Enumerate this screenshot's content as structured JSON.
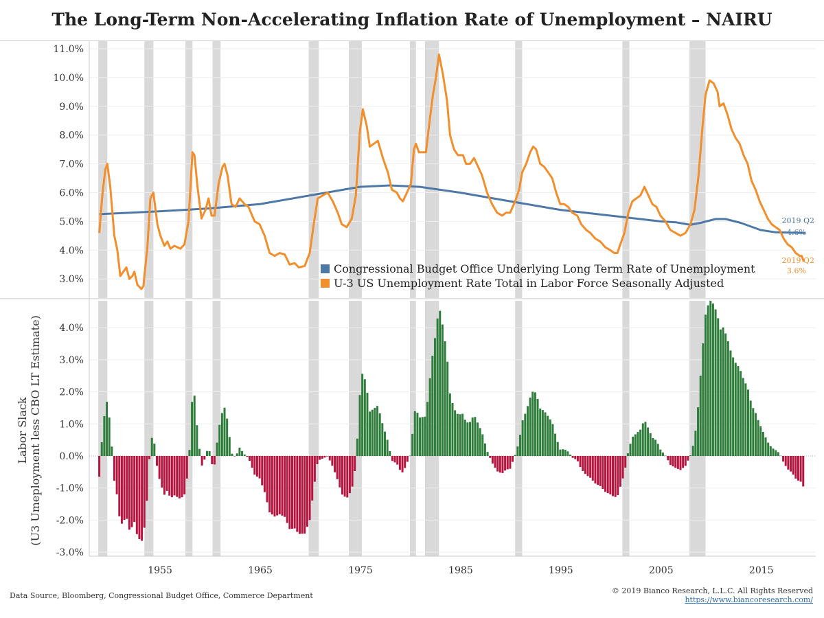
{
  "title": "The Long-Term Non-Accelerating Inflation Rate of Unemployment – NAIRU",
  "footer": {
    "source": "Data Source, Bloomberg, Congressional Budget Office, Commerce Department",
    "copyright": "© 2019 Bianco Research, L.L.C. All Rights Reserved",
    "url": "https://www.biancoresearch.com/"
  },
  "colors": {
    "cbo": "#4e79a7",
    "u3": "#f28e2b",
    "positive": "#2e7d3b",
    "negative": "#b5153f",
    "recession": "#d9d9d9"
  },
  "chart_data": [
    {
      "type": "line",
      "title": "The Long-Term Non-Accelerating Inflation Rate of Unemployment – NAIRU",
      "ylim": [
        2.5,
        11.2
      ],
      "y_ticks": [
        "3.0%",
        "4.0%",
        "5.0%",
        "6.0%",
        "7.0%",
        "8.0%",
        "9.0%",
        "10.0%",
        "11.0%"
      ],
      "y_tick_values": [
        3,
        4,
        5,
        6,
        7,
        8,
        9,
        10,
        11
      ],
      "xlim": [
        1948.0,
        2020.5
      ],
      "recessions": [
        [
          1948.9,
          1949.8
        ],
        [
          1953.5,
          1954.4
        ],
        [
          1957.6,
          1958.3
        ],
        [
          1960.3,
          1961.1
        ],
        [
          1969.9,
          1970.9
        ],
        [
          1973.9,
          1975.2
        ],
        [
          1980.0,
          1980.6
        ],
        [
          1981.5,
          1982.9
        ],
        [
          1990.5,
          1991.2
        ],
        [
          2001.2,
          2001.9
        ],
        [
          2007.9,
          2009.5
        ]
      ],
      "series": [
        {
          "name": "Congressional Budget Office Underlying Long Term Rate of Unemployment",
          "color": "#4e79a7",
          "end_label": [
            "2019 Q2",
            "4.6%"
          ],
          "points": [
            [
              1949.0,
              5.25
            ],
            [
              1955.0,
              5.35
            ],
            [
              1960.0,
              5.45
            ],
            [
              1965.0,
              5.6
            ],
            [
              1970.0,
              5.9
            ],
            [
              1975.0,
              6.2
            ],
            [
              1978.0,
              6.25
            ],
            [
              1981.0,
              6.2
            ],
            [
              1985.0,
              6.0
            ],
            [
              1990.0,
              5.7
            ],
            [
              1995.0,
              5.4
            ],
            [
              2000.0,
              5.2
            ],
            [
              2005.0,
              5.0
            ],
            [
              2006.5,
              4.97
            ],
            [
              2008.0,
              4.88
            ],
            [
              2009.0,
              4.95
            ],
            [
              2010.5,
              5.08
            ],
            [
              2011.5,
              5.08
            ],
            [
              2013.0,
              4.95
            ],
            [
              2015.0,
              4.7
            ],
            [
              2016.5,
              4.62
            ],
            [
              2019.5,
              4.6
            ]
          ]
        },
        {
          "name": "U-3 US Unemployment Rate Total in Labor Force Seasonally Adjusted",
          "color": "#f28e2b",
          "end_label": [
            "2019 Q2",
            "3.6%"
          ],
          "points": [
            [
              1949.0,
              4.6
            ],
            [
              1949.3,
              5.9
            ],
            [
              1949.6,
              6.8
            ],
            [
              1949.8,
              7.0
            ],
            [
              1950.1,
              6.2
            ],
            [
              1950.5,
              4.5
            ],
            [
              1950.8,
              4.0
            ],
            [
              1951.1,
              3.1
            ],
            [
              1951.5,
              3.3
            ],
            [
              1951.7,
              3.4
            ],
            [
              1952.0,
              3.0
            ],
            [
              1952.3,
              3.1
            ],
            [
              1952.5,
              3.25
            ],
            [
              1952.8,
              2.8
            ],
            [
              1953.2,
              2.65
            ],
            [
              1953.4,
              2.75
            ],
            [
              1953.8,
              4.1
            ],
            [
              1954.1,
              5.8
            ],
            [
              1954.4,
              6.0
            ],
            [
              1954.8,
              4.9
            ],
            [
              1955.1,
              4.5
            ],
            [
              1955.5,
              4.15
            ],
            [
              1955.8,
              4.3
            ],
            [
              1956.1,
              4.05
            ],
            [
              1956.5,
              4.15
            ],
            [
              1956.8,
              4.1
            ],
            [
              1957.1,
              4.05
            ],
            [
              1957.5,
              4.2
            ],
            [
              1957.9,
              5.0
            ],
            [
              1958.3,
              7.4
            ],
            [
              1958.5,
              7.3
            ],
            [
              1958.8,
              6.2
            ],
            [
              1959.2,
              5.1
            ],
            [
              1959.6,
              5.4
            ],
            [
              1959.9,
              5.8
            ],
            [
              1960.2,
              5.2
            ],
            [
              1960.5,
              5.2
            ],
            [
              1960.9,
              6.3
            ],
            [
              1961.3,
              6.9
            ],
            [
              1961.5,
              7.0
            ],
            [
              1961.8,
              6.6
            ],
            [
              1962.2,
              5.6
            ],
            [
              1962.6,
              5.5
            ],
            [
              1963.0,
              5.8
            ],
            [
              1963.5,
              5.6
            ],
            [
              1963.9,
              5.5
            ],
            [
              1964.5,
              5.0
            ],
            [
              1965.0,
              4.9
            ],
            [
              1965.5,
              4.5
            ],
            [
              1966.0,
              3.9
            ],
            [
              1966.5,
              3.8
            ],
            [
              1967.0,
              3.9
            ],
            [
              1967.5,
              3.85
            ],
            [
              1968.0,
              3.5
            ],
            [
              1968.5,
              3.55
            ],
            [
              1968.9,
              3.4
            ],
            [
              1969.5,
              3.45
            ],
            [
              1970.0,
              3.9
            ],
            [
              1970.4,
              4.9
            ],
            [
              1970.8,
              5.8
            ],
            [
              1971.3,
              5.9
            ],
            [
              1971.8,
              6.0
            ],
            [
              1972.3,
              5.7
            ],
            [
              1972.8,
              5.3
            ],
            [
              1973.2,
              4.9
            ],
            [
              1973.7,
              4.8
            ],
            [
              1974.2,
              5.1
            ],
            [
              1974.6,
              5.9
            ],
            [
              1975.0,
              8.1
            ],
            [
              1975.3,
              8.9
            ],
            [
              1975.7,
              8.3
            ],
            [
              1976.0,
              7.6
            ],
            [
              1976.4,
              7.7
            ],
            [
              1976.8,
              7.8
            ],
            [
              1977.3,
              7.2
            ],
            [
              1977.8,
              6.7
            ],
            [
              1978.2,
              6.1
            ],
            [
              1978.7,
              6.0
            ],
            [
              1979.0,
              5.8
            ],
            [
              1979.3,
              5.7
            ],
            [
              1979.7,
              6.0
            ],
            [
              1980.1,
              6.3
            ],
            [
              1980.4,
              7.5
            ],
            [
              1980.6,
              7.7
            ],
            [
              1980.9,
              7.4
            ],
            [
              1981.3,
              7.4
            ],
            [
              1981.6,
              7.4
            ],
            [
              1981.9,
              8.3
            ],
            [
              1982.3,
              9.4
            ],
            [
              1982.6,
              10.0
            ],
            [
              1982.9,
              10.8
            ],
            [
              1983.3,
              10.1
            ],
            [
              1983.7,
              9.2
            ],
            [
              1984.0,
              8.0
            ],
            [
              1984.4,
              7.5
            ],
            [
              1984.8,
              7.3
            ],
            [
              1985.3,
              7.3
            ],
            [
              1985.6,
              7.0
            ],
            [
              1986.0,
              7.0
            ],
            [
              1986.4,
              7.2
            ],
            [
              1986.8,
              6.9
            ],
            [
              1987.2,
              6.6
            ],
            [
              1987.7,
              6.0
            ],
            [
              1988.2,
              5.6
            ],
            [
              1988.7,
              5.3
            ],
            [
              1989.2,
              5.2
            ],
            [
              1989.6,
              5.3
            ],
            [
              1990.0,
              5.3
            ],
            [
              1990.5,
              5.7
            ],
            [
              1990.9,
              6.1
            ],
            [
              1991.2,
              6.7
            ],
            [
              1991.6,
              7.0
            ],
            [
              1992.0,
              7.4
            ],
            [
              1992.3,
              7.6
            ],
            [
              1992.6,
              7.5
            ],
            [
              1993.0,
              7.0
            ],
            [
              1993.4,
              6.9
            ],
            [
              1993.8,
              6.7
            ],
            [
              1994.2,
              6.5
            ],
            [
              1994.6,
              6.0
            ],
            [
              1995.0,
              5.6
            ],
            [
              1995.4,
              5.6
            ],
            [
              1995.8,
              5.5
            ],
            [
              1996.2,
              5.3
            ],
            [
              1996.7,
              5.2
            ],
            [
              1997.1,
              4.9
            ],
            [
              1997.6,
              4.7
            ],
            [
              1998.0,
              4.6
            ],
            [
              1998.5,
              4.4
            ],
            [
              1999.0,
              4.3
            ],
            [
              1999.5,
              4.1
            ],
            [
              2000.0,
              4.0
            ],
            [
              2000.4,
              3.9
            ],
            [
              2000.7,
              3.9
            ],
            [
              2001.0,
              4.2
            ],
            [
              2001.4,
              4.6
            ],
            [
              2001.8,
              5.3
            ],
            [
              2002.2,
              5.7
            ],
            [
              2002.6,
              5.8
            ],
            [
              2003.0,
              5.9
            ],
            [
              2003.4,
              6.2
            ],
            [
              2003.8,
              5.9
            ],
            [
              2004.2,
              5.6
            ],
            [
              2004.6,
              5.5
            ],
            [
              2005.0,
              5.2
            ],
            [
              2005.5,
              5.0
            ],
            [
              2006.0,
              4.7
            ],
            [
              2006.5,
              4.6
            ],
            [
              2007.0,
              4.5
            ],
            [
              2007.5,
              4.6
            ],
            [
              2008.0,
              4.9
            ],
            [
              2008.4,
              5.4
            ],
            [
              2008.8,
              6.6
            ],
            [
              2009.2,
              8.3
            ],
            [
              2009.5,
              9.4
            ],
            [
              2009.9,
              9.9
            ],
            [
              2010.3,
              9.8
            ],
            [
              2010.7,
              9.5
            ],
            [
              2010.9,
              9.0
            ],
            [
              2011.3,
              9.1
            ],
            [
              2011.7,
              8.7
            ],
            [
              2012.1,
              8.2
            ],
            [
              2012.5,
              7.9
            ],
            [
              2012.9,
              7.7
            ],
            [
              2013.3,
              7.3
            ],
            [
              2013.7,
              7.0
            ],
            [
              2014.1,
              6.4
            ],
            [
              2014.5,
              6.1
            ],
            [
              2014.9,
              5.7
            ],
            [
              2015.3,
              5.4
            ],
            [
              2015.7,
              5.1
            ],
            [
              2016.1,
              4.9
            ],
            [
              2016.5,
              4.8
            ],
            [
              2016.9,
              4.7
            ],
            [
              2017.3,
              4.4
            ],
            [
              2017.7,
              4.2
            ],
            [
              2018.1,
              4.1
            ],
            [
              2018.5,
              3.9
            ],
            [
              2018.9,
              3.8
            ],
            [
              2019.1,
              3.8
            ],
            [
              2019.3,
              3.6
            ]
          ]
        }
      ],
      "legend": {
        "placement": "bottom-right"
      }
    },
    {
      "type": "bar",
      "ylabel": [
        "Labor Slack",
        "(U3 Umeployment less CBO LT Estimate)"
      ],
      "ylim": [
        -3.1,
        4.7
      ],
      "y_ticks": [
        "-3.0%",
        "-2.0%",
        "-1.0%",
        "0.0%",
        "1.0%",
        "2.0%",
        "3.0%",
        "4.0%"
      ],
      "y_tick_values": [
        -3,
        -2,
        -1,
        0,
        1,
        2,
        3,
        4
      ],
      "x_ticks": [
        "1955",
        "1965",
        "1975",
        "1985",
        "1995",
        "2005",
        "2015"
      ],
      "x_tick_values": [
        1955,
        1965,
        1975,
        1985,
        1995,
        2005,
        2015
      ],
      "bar_period": "quarterly",
      "start": 1949.0,
      "end": 2019.25,
      "values_derived_from": "U-3 minus CBO"
    }
  ]
}
